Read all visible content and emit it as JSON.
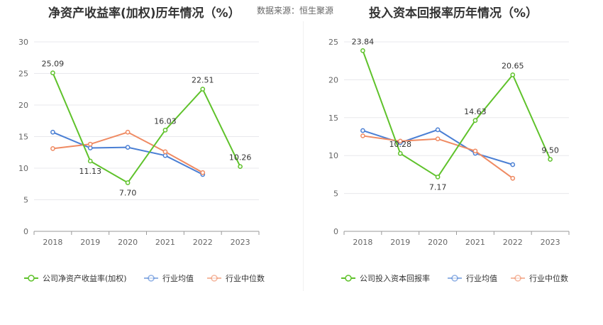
{
  "source": "数据来源：恒生聚源",
  "chart_data": [
    {
      "type": "line",
      "title": "净资产收益率(加权)历年情况（%）",
      "categories": [
        "2018",
        "2019",
        "2020",
        "2021",
        "2022",
        "2023"
      ],
      "ylim": [
        0,
        30
      ],
      "yticks": [
        0,
        5,
        10,
        15,
        20,
        25,
        30
      ],
      "grid": true,
      "legend_position": "bottom",
      "series": [
        {
          "name": "公司净资产收益率(加权)",
          "color": "#5fc22b",
          "values": [
            25.09,
            11.13,
            7.7,
            16.03,
            22.51,
            10.26
          ],
          "labels": [
            "25.09",
            "11.13",
            "7.70",
            "16.03",
            "22.51",
            "10.26"
          ]
        },
        {
          "name": "行业均值",
          "color": "#4a7fd4",
          "values": [
            15.7,
            13.2,
            13.3,
            12.0,
            9.0,
            null
          ]
        },
        {
          "name": "行业中位数",
          "color": "#ef8a62",
          "values": [
            13.1,
            13.8,
            15.7,
            12.6,
            9.3,
            null
          ]
        }
      ]
    },
    {
      "type": "line",
      "title": "投入资本回报率历年情况（%）",
      "categories": [
        "2018",
        "2019",
        "2020",
        "2021",
        "2022",
        "2023"
      ],
      "ylim": [
        0,
        25
      ],
      "yticks": [
        0,
        5,
        10,
        15,
        20,
        25
      ],
      "grid": true,
      "legend_position": "bottom",
      "series": [
        {
          "name": "公司投入资本回报率",
          "color": "#5fc22b",
          "values": [
            23.84,
            10.28,
            7.17,
            14.63,
            20.65,
            9.5
          ],
          "labels": [
            "23.84",
            "10.28",
            "7.17",
            "14.63",
            "20.65",
            "9.50"
          ]
        },
        {
          "name": "行业均值",
          "color": "#4a7fd4",
          "values": [
            13.3,
            11.7,
            13.4,
            10.3,
            8.8,
            null
          ]
        },
        {
          "name": "行业中位数",
          "color": "#ef8a62",
          "values": [
            12.6,
            11.9,
            12.2,
            10.6,
            7.0,
            null
          ]
        }
      ]
    }
  ]
}
